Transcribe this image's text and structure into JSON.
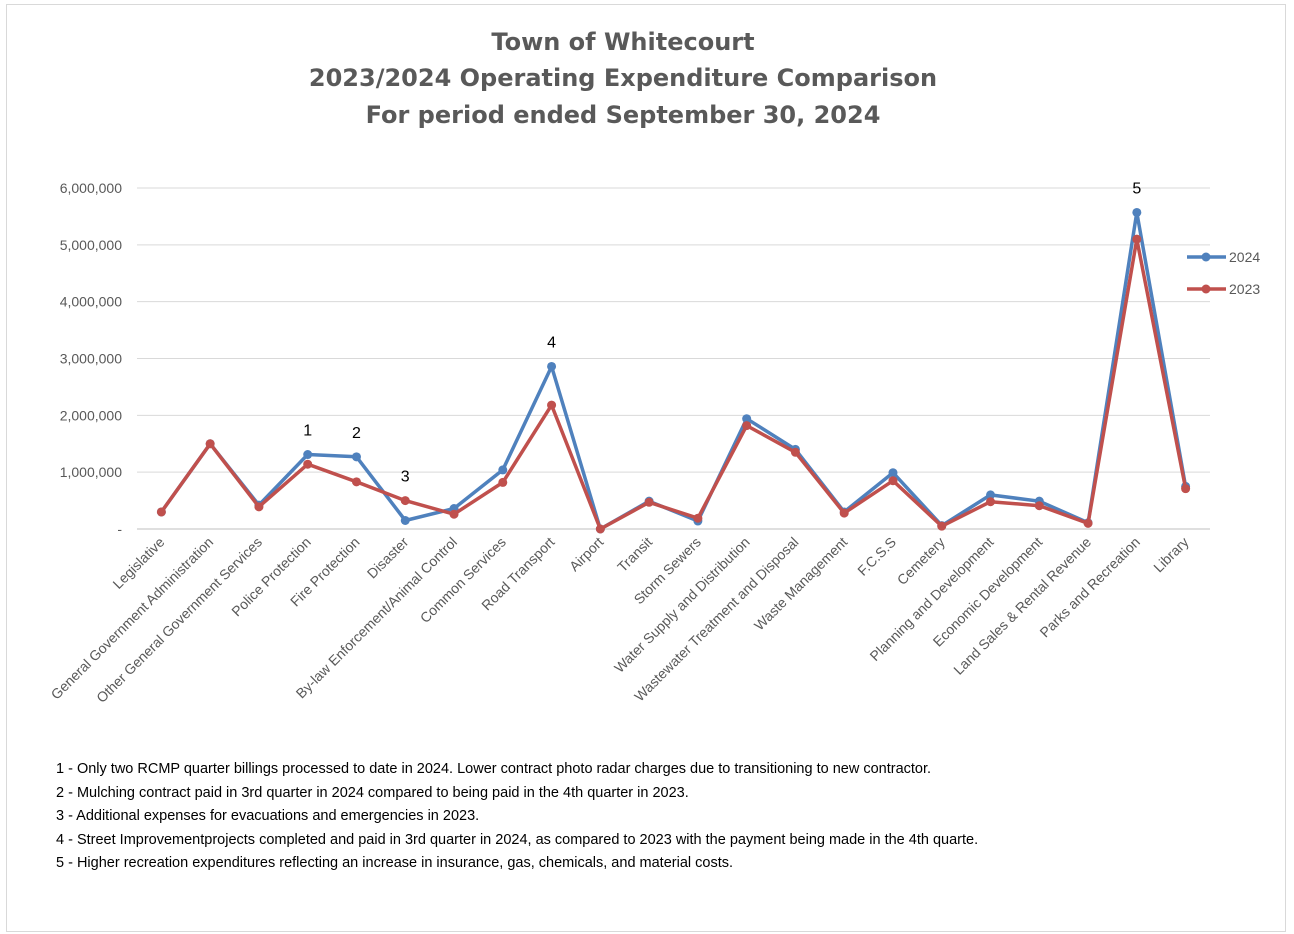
{
  "chart_data": {
    "type": "line",
    "title_lines": [
      "Town of Whitecourt",
      "2023/2024 Operating Expenditure Comparison",
      "For period ended September 30, 2024"
    ],
    "categories": [
      "Legislative",
      "General Government Administration",
      "Other General Government Services",
      "Police Protection",
      "Fire Protection",
      "Disaster",
      "By-law Enforcement/Animal Control",
      "Common Services",
      "Road Transport",
      "Airport",
      "Transit",
      "Storm Sewers",
      "Water Supply and Distribution",
      "Wastewater Treatment and Disposal",
      "Waste Management",
      "F.C.S.S",
      "Cemetery",
      "Planning and Development",
      "Economic Development",
      "Land Sales & Rental Revenue",
      "Parks and Recreation",
      "Library"
    ],
    "series": [
      {
        "name": "2024",
        "color": "#4f81bd",
        "values": [
          300000,
          1500000,
          420000,
          1310000,
          1270000,
          150000,
          360000,
          1040000,
          2860000,
          0,
          490000,
          140000,
          1940000,
          1400000,
          300000,
          990000,
          60000,
          600000,
          490000,
          110000,
          5570000,
          750000
        ]
      },
      {
        "name": "2023",
        "color": "#c0504d",
        "values": [
          300000,
          1500000,
          390000,
          1140000,
          830000,
          500000,
          260000,
          820000,
          2180000,
          0,
          470000,
          190000,
          1820000,
          1350000,
          280000,
          850000,
          50000,
          480000,
          410000,
          100000,
          5100000,
          710000
        ]
      }
    ],
    "yticks": [
      "-",
      "1,000,000",
      "2,000,000",
      "3,000,000",
      "4,000,000",
      "5,000,000",
      "6,000,000"
    ],
    "ylim": [
      0,
      6000000
    ],
    "grid": true,
    "legend_position": "right",
    "annotations": [
      {
        "label": "1",
        "category": "Police Protection"
      },
      {
        "label": "2",
        "category": "Fire Protection"
      },
      {
        "label": "3",
        "category": "Disaster"
      },
      {
        "label": "4",
        "category": "Road Transport"
      },
      {
        "label": "5",
        "category": "Parks and Recreation"
      }
    ],
    "notes": [
      "1 - Only two RCMP quarter billings processed to date in 2024. Lower contract photo radar charges due to transitioning to new contractor.",
      "2 - Mulching contract paid in 3rd quarter in 2024 compared to being paid in the 4th quarter in 2023.",
      "3 - Additional expenses for evacuations and emergencies in 2023.",
      "4 - Street Improvementprojects  completed and paid in 3rd quarter in 2024, as  compared to 2023 with the payment being made  in the 4th  quarte.",
      "5 - Higher recreation expenditures reflecting an increase in insurance, gas, chemicals, and material costs."
    ]
  }
}
